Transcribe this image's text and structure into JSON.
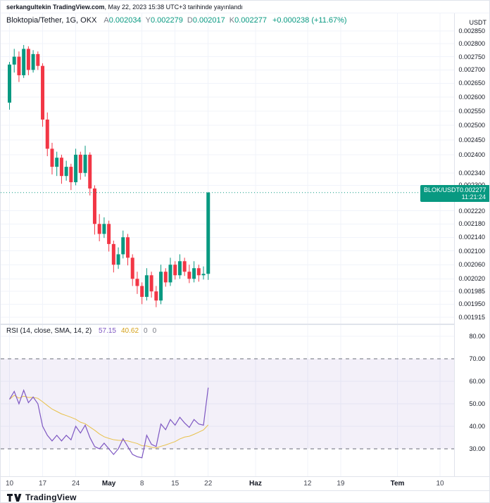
{
  "status_bar": {
    "username": "serkangultekin TradingView.com",
    "published_text": ", May 22, 2023 15:38 UTC+3 tarihinde yayınlandı"
  },
  "header": {
    "symbol": "Bloktopia/Tether, 1G, OKX",
    "ohlc": [
      {
        "label": "A",
        "value": "0.002034"
      },
      {
        "label": "Y",
        "value": "0.002279"
      },
      {
        "label": "D",
        "value": "0.002017"
      },
      {
        "label": "K",
        "value": "0.002277"
      }
    ],
    "change": "+0.000238 (+11.67%)"
  },
  "price_axis": {
    "currency": "USDT",
    "badge": {
      "symbol": "BLOK/USDT",
      "price": "0.002277",
      "countdown": "11:21:24"
    }
  },
  "rsi": {
    "label": "RSI (14, close, SMA, 14, 2)",
    "values": [
      {
        "text": "57.15",
        "color": "#7e57c2"
      },
      {
        "text": "40.62",
        "color": "#d4a017"
      },
      {
        "text": "0",
        "color": "#787b86"
      },
      {
        "text": "0",
        "color": "#787b86"
      }
    ]
  },
  "footer": {
    "brand": "TradingView"
  },
  "colors": {
    "up": "#089981",
    "down": "#f23645",
    "rsi_line": "#7e57c2",
    "rsi_ma": "#e8c14a",
    "band": "#7e57c2",
    "grid": "#f0f3fa",
    "dashed_level": "#6a6d78"
  },
  "chart_data": [
    {
      "type": "candlestick",
      "title": "Bloktopia/Tether, 1G, OKX",
      "interval": "1G (daily)",
      "scale": "log",
      "ylim": [
        0.0018963,
        0.0029205
      ],
      "last_price": 0.002277,
      "price_ticks": [
        "0.002850",
        "0.002800",
        "0.002750",
        "0.002700",
        "0.002650",
        "0.002600",
        "0.002550",
        "0.002500",
        "0.002450",
        "0.002400",
        "0.002340",
        "0.002300",
        "0.002220",
        "0.002180",
        "0.002140",
        "0.002100",
        "0.002060",
        "0.002020",
        "0.001985",
        "0.001950",
        "0.001915"
      ],
      "time_ticks": [
        {
          "label": "10",
          "day": 0,
          "is_month": false
        },
        {
          "label": "17",
          "day": 7,
          "is_month": false
        },
        {
          "label": "24",
          "day": 14,
          "is_month": false
        },
        {
          "label": "May",
          "day": 21,
          "is_month": true
        },
        {
          "label": "8",
          "day": 28,
          "is_month": false
        },
        {
          "label": "15",
          "day": 35,
          "is_month": false
        },
        {
          "label": "22",
          "day": 42,
          "is_month": false
        },
        {
          "label": "Haz",
          "day": 52,
          "is_month": true
        },
        {
          "label": "12",
          "day": 63,
          "is_month": false
        },
        {
          "label": "19",
          "day": 70,
          "is_month": false
        },
        {
          "label": "Tem",
          "day": 82,
          "is_month": true
        },
        {
          "label": "10",
          "day": 91,
          "is_month": false
        }
      ],
      "candles": [
        [
          0.00258,
          0.00273,
          0.002555,
          0.00272
        ],
        [
          0.00272,
          0.00278,
          0.00269,
          0.00275
        ],
        [
          0.00275,
          0.00277,
          0.002655,
          0.00268
        ],
        [
          0.00268,
          0.002795,
          0.00267,
          0.00278
        ],
        [
          0.00278,
          0.00279,
          0.00268,
          0.0027
        ],
        [
          0.0027,
          0.002775,
          0.00269,
          0.00276
        ],
        [
          0.00276,
          0.00277,
          0.0027,
          0.002715
        ],
        [
          0.002715,
          0.002725,
          0.002495,
          0.00252
        ],
        [
          0.00252,
          0.002545,
          0.002395,
          0.00242
        ],
        [
          0.00242,
          0.00244,
          0.002335,
          0.00236
        ],
        [
          0.00236,
          0.00241,
          0.00233,
          0.00239
        ],
        [
          0.00239,
          0.0024,
          0.002305,
          0.00233
        ],
        [
          0.00233,
          0.00238,
          0.002315,
          0.00236
        ],
        [
          0.00236,
          0.00237,
          0.002285,
          0.00231
        ],
        [
          0.00231,
          0.00242,
          0.0023,
          0.0024
        ],
        [
          0.0024,
          0.00241,
          0.002318,
          0.00234
        ],
        [
          0.00234,
          0.00243,
          0.002328,
          0.0024
        ],
        [
          0.0024,
          0.002408,
          0.002268,
          0.00229
        ],
        [
          0.00229,
          0.0023,
          0.002148,
          0.00218
        ],
        [
          0.00218,
          0.00221,
          0.002128,
          0.00215
        ],
        [
          0.00215,
          0.0022,
          0.002138,
          0.00218
        ],
        [
          0.00218,
          0.00219,
          0.002098,
          0.00212
        ],
        [
          0.00212,
          0.00213,
          0.002038,
          0.00206
        ],
        [
          0.00206,
          0.00211,
          0.002048,
          0.00209
        ],
        [
          0.00209,
          0.00216,
          0.002078,
          0.00214
        ],
        [
          0.00214,
          0.00215,
          0.002058,
          0.00208
        ],
        [
          0.00208,
          0.00209,
          0.002,
          0.00202
        ],
        [
          0.00202,
          0.00204,
          0.001978,
          0.002
        ],
        [
          0.002,
          0.00201,
          0.00195,
          0.00197
        ],
        [
          0.00197,
          0.00205,
          0.00196,
          0.00203
        ],
        [
          0.00203,
          0.00204,
          0.001968,
          0.001985
        ],
        [
          0.001985,
          0.002,
          0.001942,
          0.00196
        ],
        [
          0.00196,
          0.00206,
          0.00195,
          0.00204
        ],
        [
          0.00204,
          0.00205,
          0.001998,
          0.00201
        ],
        [
          0.00201,
          0.00208,
          0.002,
          0.00206
        ],
        [
          0.00206,
          0.00207,
          0.002018,
          0.00203
        ],
        [
          0.00203,
          0.00209,
          0.00202,
          0.00207
        ],
        [
          0.00207,
          0.00208,
          0.002028,
          0.00204
        ],
        [
          0.00204,
          0.00206,
          0.002008,
          0.00202
        ],
        [
          0.00202,
          0.00207,
          0.00201,
          0.00205
        ],
        [
          0.00205,
          0.00206,
          0.002012,
          0.00203
        ],
        [
          0.00203,
          0.002055,
          0.002018,
          0.002034
        ],
        [
          0.002034,
          0.002279,
          0.002017,
          0.002277
        ]
      ]
    },
    {
      "type": "line",
      "title": "RSI (14, close, SMA, 14, 2)",
      "ylim": [
        17.8,
        85.3
      ],
      "ticks": [
        80,
        70,
        60,
        50,
        40,
        30
      ],
      "band": [
        30,
        70
      ],
      "legend_position": "top-left",
      "series": [
        {
          "name": "RSI",
          "values": [
            52,
            55.5,
            50,
            56,
            50.5,
            53,
            50,
            40,
            36,
            33.5,
            36,
            33.5,
            36,
            34,
            40,
            37,
            40.5,
            35,
            31,
            30,
            32.5,
            30,
            27.5,
            30,
            34.5,
            31,
            27.5,
            26.5,
            26,
            36,
            32,
            31,
            41,
            38.5,
            43,
            40.5,
            44,
            41.5,
            39.5,
            43,
            41,
            40.5,
            57.15
          ]
        },
        {
          "name": "RSI-based MA",
          "derived": "SMA(14) of RSI"
        }
      ]
    }
  ]
}
